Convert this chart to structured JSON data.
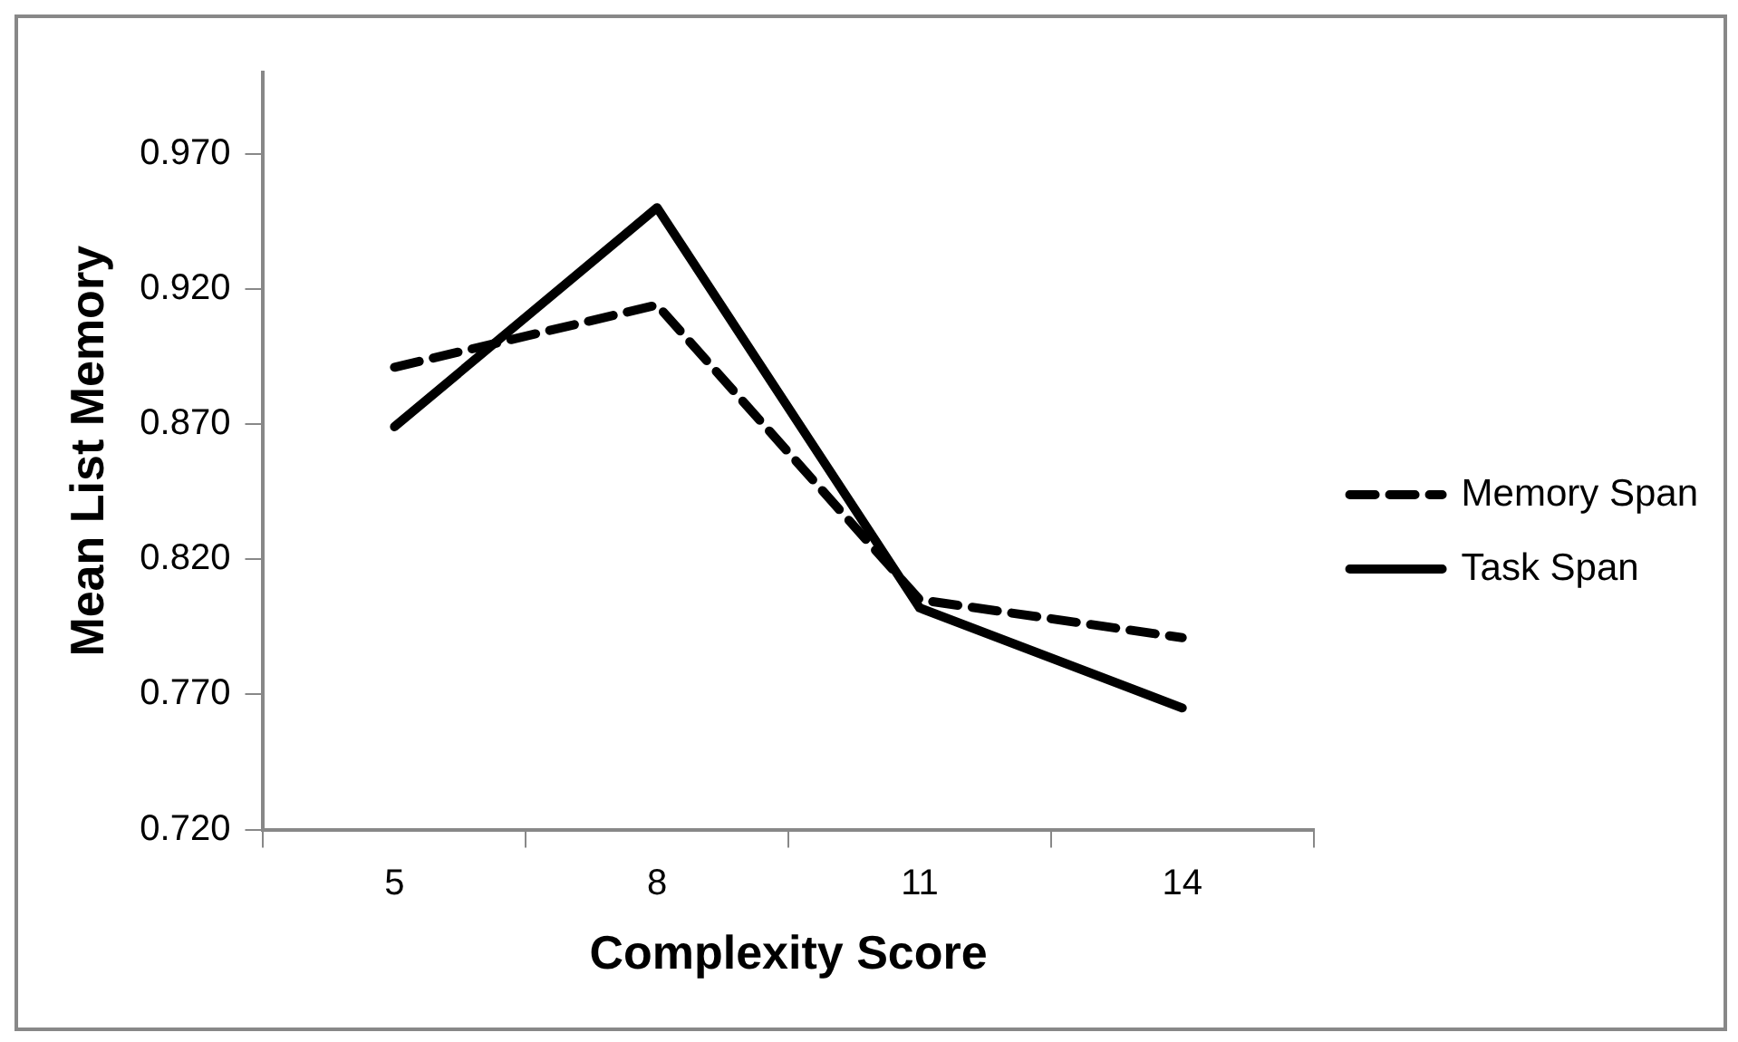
{
  "chart_data": {
    "type": "line",
    "xlabel": "Complexity Score",
    "ylabel": "Mean List Memory",
    "categories": [
      "5",
      "8",
      "11",
      "14"
    ],
    "series": [
      {
        "name": "Memory Span",
        "color": "#000000",
        "line_style": "dashed",
        "values": [
          0.891,
          0.914,
          0.805,
          0.791
        ]
      },
      {
        "name": "Task Span",
        "color": "#000000",
        "line_style": "solid",
        "values": [
          0.869,
          0.95,
          0.802,
          0.765
        ]
      }
    ],
    "ylim": [
      0.72,
      1.0
    ],
    "yticks": [
      {
        "value": 0.72,
        "label": "0.720"
      },
      {
        "value": 0.77,
        "label": "0.770"
      },
      {
        "value": 0.82,
        "label": "0.820"
      },
      {
        "value": 0.87,
        "label": "0.870"
      },
      {
        "value": 0.92,
        "label": "0.920"
      },
      {
        "value": 0.97,
        "label": "0.970"
      }
    ],
    "grid": false,
    "legend": "right",
    "marker": "none"
  }
}
